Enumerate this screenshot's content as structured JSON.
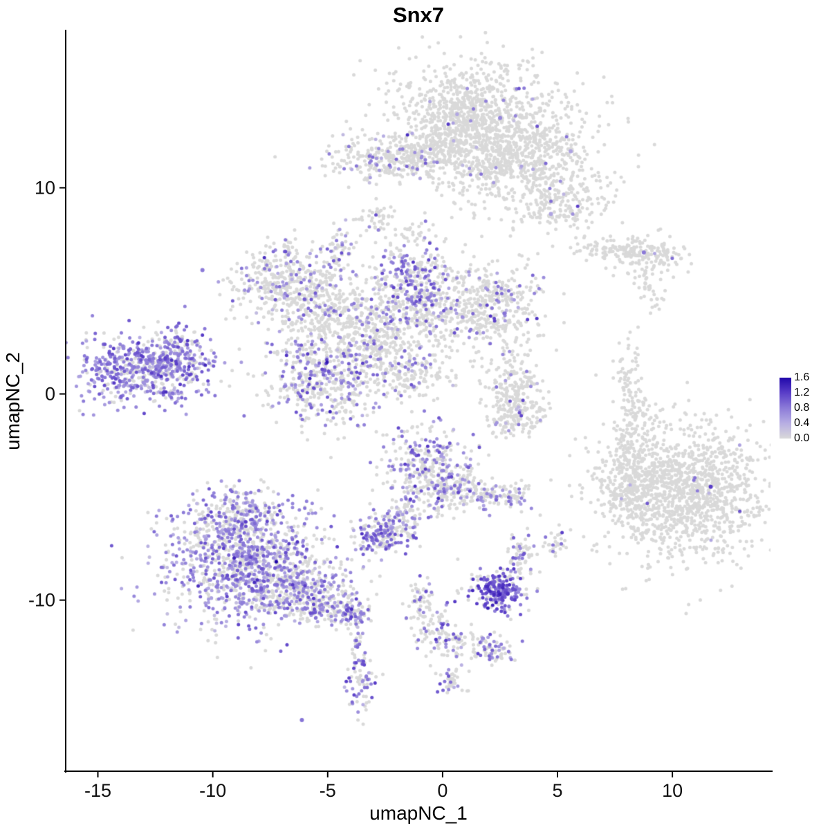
{
  "chart_data": {
    "type": "scatter",
    "title": "Snx7",
    "xlabel": "umapNC_1",
    "ylabel": "umapNC_2",
    "xlim": [
      -16.4,
      14.3
    ],
    "ylim": [
      -18.3,
      17.6
    ],
    "x_ticks": [
      "-15",
      "-10",
      "-5",
      "0",
      "5",
      "10"
    ],
    "x_tick_values": [
      -15,
      -10,
      -5,
      0,
      5,
      10
    ],
    "y_ticks": [
      "-10",
      "0",
      "10"
    ],
    "y_tick_values": [
      -10,
      0,
      10
    ],
    "grid": false,
    "background_color": "#ffffff",
    "base_point_color": "#d9d9d9",
    "point_radius": 2.5,
    "seed": 7,
    "legend": {
      "position": "right",
      "min": 0.0,
      "max": 1.6,
      "tick_labels": [
        "1.6",
        "1.2",
        "0.8",
        "0.4",
        "0.0"
      ],
      "tick_values": [
        1.6,
        1.2,
        0.8,
        0.4,
        0.0
      ]
    },
    "colorscale": [
      {
        "t": 0.0,
        "color": "#d9d9d9"
      },
      {
        "t": 0.25,
        "color": "#b7aee3"
      },
      {
        "t": 0.5,
        "color": "#8c7bd8"
      },
      {
        "t": 0.75,
        "color": "#5a3ec8"
      },
      {
        "t": 1.0,
        "color": "#2108aa"
      }
    ],
    "blob_fields": [
      "x",
      "y",
      "rx",
      "ry",
      "n",
      "frac_expressed",
      "mean_expr"
    ],
    "clusters": [
      {
        "name": "top-large-cluster",
        "blobs": [
          [
            1.6,
            14.2,
            2.1,
            1.1,
            520,
            0.012,
            0.7
          ],
          [
            0.9,
            12.9,
            1.0,
            0.9,
            260,
            0.01,
            0.7
          ],
          [
            1.4,
            11.9,
            1.1,
            1.2,
            300,
            0.012,
            0.7
          ],
          [
            3.6,
            11.0,
            1.6,
            1.2,
            420,
            0.015,
            0.7
          ],
          [
            5.3,
            9.4,
            1.0,
            0.9,
            170,
            0.02,
            0.7
          ],
          [
            4.0,
            12.3,
            1.2,
            0.8,
            150,
            0.01,
            0.7
          ],
          [
            -2.3,
            11.4,
            1.4,
            0.6,
            260,
            0.16,
            0.7
          ],
          [
            -0.9,
            11.8,
            0.8,
            0.5,
            120,
            0.06,
            0.7
          ],
          [
            -2.8,
            8.4,
            0.5,
            0.4,
            40,
            0.05,
            0.7
          ],
          [
            -1.1,
            7.9,
            0.4,
            0.3,
            25,
            0.0,
            0.7
          ],
          [
            2.5,
            13.4,
            0.05,
            0.05,
            1,
            1,
            0.9
          ],
          [
            5.5,
            11.6,
            0.05,
            0.05,
            1,
            1,
            0.9
          ],
          [
            4.7,
            8.7,
            0.05,
            0.05,
            1,
            1,
            0.8
          ]
        ]
      },
      {
        "name": "top-right-strip",
        "blobs": [
          [
            7.6,
            7.0,
            0.9,
            0.35,
            90,
            0.02,
            0.7
          ],
          [
            9.0,
            6.7,
            0.9,
            0.4,
            110,
            0.02,
            0.7
          ],
          [
            8.7,
            6.9,
            0.06,
            0.06,
            1,
            1,
            0.9
          ],
          [
            8.9,
            5.6,
            0.45,
            0.45,
            40,
            0,
            0.7
          ],
          [
            9.3,
            4.4,
            0.15,
            0.25,
            8,
            0,
            0.7
          ]
        ]
      },
      {
        "name": "central-complex",
        "blobs": [
          [
            -7.0,
            5.6,
            1.1,
            0.8,
            280,
            0.22,
            0.7
          ],
          [
            -5.7,
            4.7,
            1.0,
            0.8,
            220,
            0.15,
            0.7
          ],
          [
            -4.5,
            7.1,
            0.35,
            0.55,
            55,
            0.3,
            0.75
          ],
          [
            -1.3,
            5.6,
            0.95,
            0.95,
            300,
            0.42,
            0.8
          ],
          [
            -3.5,
            3.4,
            1.7,
            1.0,
            430,
            0.12,
            0.7
          ],
          [
            1.2,
            4.2,
            1.6,
            1.1,
            480,
            0.12,
            0.7
          ],
          [
            2.4,
            4.7,
            0.7,
            0.7,
            70,
            0.25,
            0.7
          ],
          [
            -5.3,
            0.7,
            1.3,
            1.1,
            430,
            0.35,
            0.75
          ],
          [
            -2.8,
            1.9,
            1.1,
            0.9,
            210,
            0.2,
            0.7
          ],
          [
            -1.3,
            0.8,
            0.8,
            0.5,
            90,
            0.15,
            0.7
          ],
          [
            -6.6,
            6.9,
            0.3,
            0.3,
            25,
            0.15,
            0.7
          ]
        ]
      },
      {
        "name": "left-cluster",
        "blobs": [
          [
            -13.2,
            1.1,
            1.5,
            0.85,
            520,
            0.72,
            0.75
          ],
          [
            -11.6,
            1.7,
            0.8,
            0.6,
            150,
            0.5,
            0.75
          ],
          [
            -11.4,
            2.6,
            0.4,
            0.4,
            45,
            0.5,
            0.8
          ],
          [
            -10.5,
            6.1,
            0.05,
            0.05,
            1,
            1,
            0.8
          ]
        ]
      },
      {
        "name": "mid-small-cluster",
        "blobs": [
          [
            3.0,
            0.5,
            0.65,
            0.85,
            170,
            0.03,
            0.7
          ],
          [
            3.5,
            -0.9,
            0.55,
            0.45,
            90,
            0.06,
            0.7
          ],
          [
            2.6,
            -1.4,
            0.35,
            0.3,
            45,
            0.12,
            0.8
          ]
        ]
      },
      {
        "name": "right-specks",
        "blobs": [
          [
            8.1,
            0.8,
            0.25,
            0.8,
            55,
            0,
            0.7
          ],
          [
            8.5,
            -0.8,
            0.3,
            0.6,
            45,
            0,
            0.7
          ],
          [
            7.8,
            -1.9,
            0.3,
            0.3,
            22,
            0,
            0.7
          ]
        ]
      },
      {
        "name": "big-right-cluster",
        "blobs": [
          [
            10.5,
            -4.7,
            1.8,
            1.6,
            1350,
            0.003,
            0.8
          ],
          [
            8.3,
            -3.5,
            0.7,
            0.9,
            130,
            0.01,
            0.7
          ],
          [
            8.0,
            -4.9,
            0.45,
            0.6,
            70,
            0.01,
            0.7
          ],
          [
            10.9,
            -4.1,
            0.07,
            0.07,
            2,
            1,
            0.9
          ],
          [
            11.7,
            -4.5,
            0.05,
            0.05,
            1,
            1,
            0.9
          ]
        ]
      },
      {
        "name": "center-bottom-cluster",
        "blobs": [
          [
            -0.7,
            -3.6,
            0.95,
            1.0,
            330,
            0.4,
            0.75
          ],
          [
            0.6,
            -4.7,
            0.9,
            0.5,
            140,
            0.25,
            0.7
          ],
          [
            2.0,
            -4.9,
            0.4,
            0.25,
            35,
            0.3,
            0.7
          ],
          [
            3.0,
            -4.9,
            0.45,
            0.3,
            50,
            0.3,
            0.7
          ],
          [
            -1.8,
            -5.8,
            0.5,
            0.6,
            70,
            0.3,
            0.7
          ],
          [
            -2.7,
            -6.8,
            0.6,
            0.5,
            160,
            0.55,
            0.8
          ],
          [
            -1.3,
            -7.0,
            0.15,
            0.15,
            6,
            0.5,
            0.8
          ]
        ]
      },
      {
        "name": "bottom-left-cluster",
        "blobs": [
          [
            -8.8,
            -8.2,
            1.7,
            1.5,
            1050,
            0.55,
            0.7
          ],
          [
            -8.9,
            -5.9,
            0.9,
            0.7,
            190,
            0.35,
            0.7
          ],
          [
            -6.4,
            -9.3,
            1.1,
            0.8,
            330,
            0.45,
            0.7
          ],
          [
            -4.9,
            -10.2,
            0.8,
            0.5,
            140,
            0.4,
            0.7
          ],
          [
            -3.9,
            -10.7,
            0.45,
            0.35,
            60,
            0.4,
            0.75
          ],
          [
            -3.7,
            -12.0,
            0.2,
            0.55,
            25,
            0.3,
            0.75
          ],
          [
            -3.5,
            -14.1,
            0.3,
            0.7,
            70,
            0.5,
            0.8
          ],
          [
            -6.1,
            -15.9,
            0.05,
            0.05,
            1,
            1,
            1.0
          ]
        ]
      },
      {
        "name": "dense-dark-cluster",
        "blobs": [
          [
            2.5,
            -9.6,
            0.55,
            0.45,
            190,
            0.88,
            1.0
          ],
          [
            2.4,
            -9.3,
            0.8,
            0.55,
            70,
            0.2,
            0.8
          ]
        ]
      },
      {
        "name": "small-cluster-above-dark",
        "blobs": [
          [
            3.4,
            -7.7,
            0.35,
            0.5,
            55,
            0.3,
            0.8
          ],
          [
            5.0,
            -7.3,
            0.25,
            0.3,
            28,
            0.3,
            0.9
          ]
        ]
      },
      {
        "name": "bottom-center-arm",
        "blobs": [
          [
            -1.0,
            -9.9,
            0.3,
            0.5,
            45,
            0.25,
            0.7
          ],
          [
            -0.4,
            -11.4,
            0.5,
            0.7,
            75,
            0.35,
            0.8
          ],
          [
            0.8,
            -12.1,
            0.6,
            0.4,
            55,
            0.3,
            0.7
          ],
          [
            2.2,
            -12.4,
            0.5,
            0.35,
            65,
            0.45,
            0.75
          ],
          [
            0.5,
            -13.9,
            0.3,
            0.3,
            40,
            0.35,
            0.8
          ]
        ]
      }
    ]
  }
}
